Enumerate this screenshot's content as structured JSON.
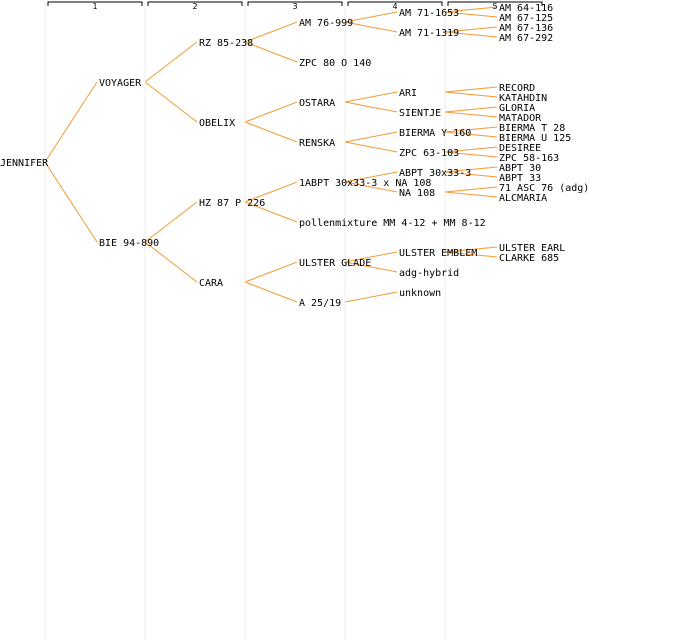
{
  "accent_color": "#f39a35",
  "generations": [
    "1",
    "2",
    "3",
    "4",
    "5"
  ],
  "tree": {
    "name": "JENNIFER",
    "children": [
      {
        "name": "VOYAGER",
        "children": [
          {
            "name": "RZ 85-238",
            "children": [
              {
                "name": "AM 76-999",
                "children": [
                  {
                    "name": "AM 71-1653",
                    "children": [
                      {
                        "name": "AM 64-116"
                      },
                      {
                        "name": "AM 67-125"
                      }
                    ]
                  },
                  {
                    "name": "AM 71-1319",
                    "children": [
                      {
                        "name": "AM 67-136"
                      },
                      {
                        "name": "AM 67-292"
                      }
                    ]
                  }
                ]
              },
              {
                "name": "ZPC 80 O 140"
              }
            ]
          },
          {
            "name": "OBELIX",
            "children": [
              {
                "name": "OSTARA",
                "children": [
                  {
                    "name": "ARI",
                    "children": [
                      {
                        "name": "RECORD"
                      },
                      {
                        "name": "KATAHDIN"
                      }
                    ]
                  },
                  {
                    "name": "SIENTJE",
                    "children": [
                      {
                        "name": "GLORIA"
                      },
                      {
                        "name": "MATADOR"
                      }
                    ]
                  }
                ]
              },
              {
                "name": "RENSKA",
                "children": [
                  {
                    "name": "BIERMA Y 160",
                    "children": [
                      {
                        "name": "BIERMA T 28"
                      },
                      {
                        "name": "BIERMA U 125"
                      }
                    ]
                  },
                  {
                    "name": "ZPC 63-103",
                    "children": [
                      {
                        "name": "DESIREE"
                      },
                      {
                        "name": "ZPC 58-163"
                      }
                    ]
                  }
                ]
              }
            ]
          }
        ]
      },
      {
        "name": "BIE 94-890",
        "children": [
          {
            "name": "HZ 87 P 226",
            "children": [
              {
                "name": "1ABPT 30x33-3 x NA 108",
                "children": [
                  {
                    "name": "ABPT 30x33-3",
                    "children": [
                      {
                        "name": "ABPT 30"
                      },
                      {
                        "name": "ABPT 33"
                      }
                    ]
                  },
                  {
                    "name": "NA 108",
                    "children": [
                      {
                        "name": "71 ASC 76 (adg)"
                      },
                      {
                        "name": "ALCMARIA"
                      }
                    ]
                  }
                ]
              },
              {
                "name": "pollenmixture MM 4-12 + MM 8-12"
              }
            ]
          },
          {
            "name": "CARA",
            "children": [
              {
                "name": "ULSTER GLADE",
                "children": [
                  {
                    "name": "ULSTER EMBLEM",
                    "children": [
                      {
                        "name": "ULSTER EARL"
                      },
                      {
                        "name": "CLARKE 685"
                      }
                    ]
                  },
                  {
                    "name": "adg-hybrid"
                  }
                ]
              },
              {
                "name": "A 25/19",
                "children": [
                  {
                    "name": "unknown"
                  }
                ]
              }
            ]
          }
        ]
      }
    ]
  }
}
